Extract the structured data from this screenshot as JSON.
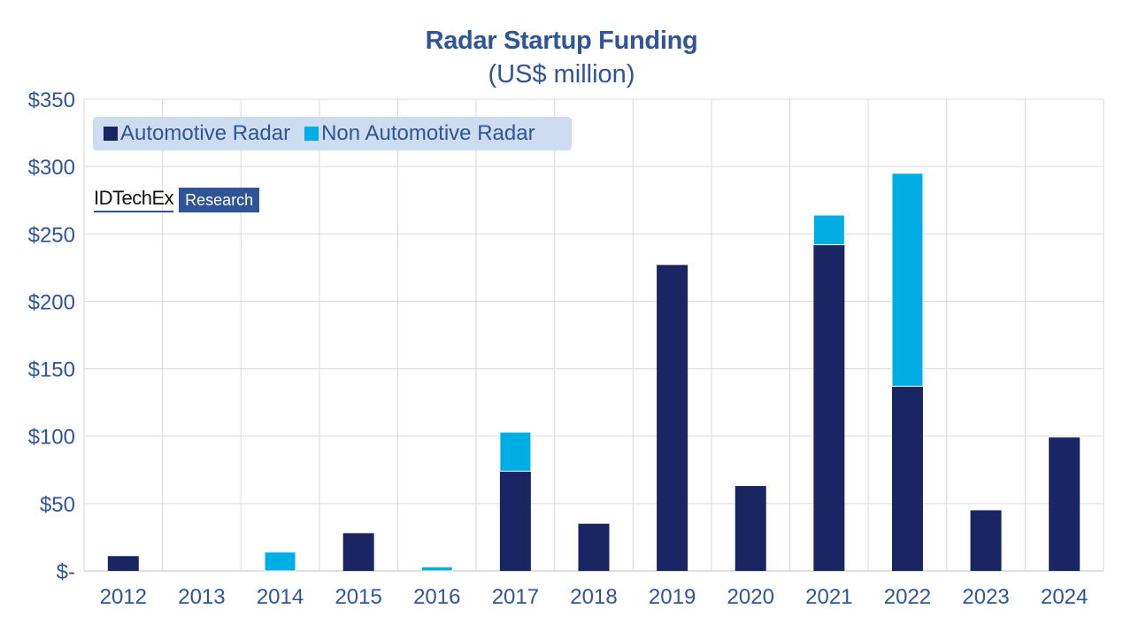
{
  "chart_data": {
    "type": "bar",
    "stacked": true,
    "title": "Radar Startup Funding",
    "subtitle": "(US$ million)",
    "xlabel": "",
    "ylabel": "",
    "categories": [
      "2012",
      "2013",
      "2014",
      "2015",
      "2016",
      "2017",
      "2018",
      "2019",
      "2020",
      "2021",
      "2022",
      "2023",
      "2024"
    ],
    "series": [
      {
        "name": "Automotive Radar",
        "color": "#1a2563",
        "values": [
          11,
          0,
          0,
          28,
          0,
          74,
          35,
          227,
          63,
          242,
          137,
          45,
          99
        ]
      },
      {
        "name": "Non Automotive Radar",
        "color": "#00aee6",
        "values": [
          0,
          0,
          14,
          0,
          3,
          29,
          0,
          0,
          0,
          22,
          158,
          0,
          0
        ]
      }
    ],
    "ylim": [
      0,
      350
    ],
    "yticks": [
      0,
      50,
      100,
      150,
      200,
      250,
      300,
      350
    ],
    "ytick_labels": [
      "$-",
      "$50",
      "$100",
      "$150",
      "$200",
      "$250",
      "$300",
      "$350"
    ],
    "grid": true,
    "legend_position": "top-left"
  },
  "legend": {
    "items": [
      {
        "label": "Automotive Radar",
        "color": "#1a2563"
      },
      {
        "label": "Non Automotive Radar",
        "color": "#00aee6"
      }
    ]
  },
  "branding": {
    "brand": "IDTechEx",
    "tag": "Research"
  }
}
